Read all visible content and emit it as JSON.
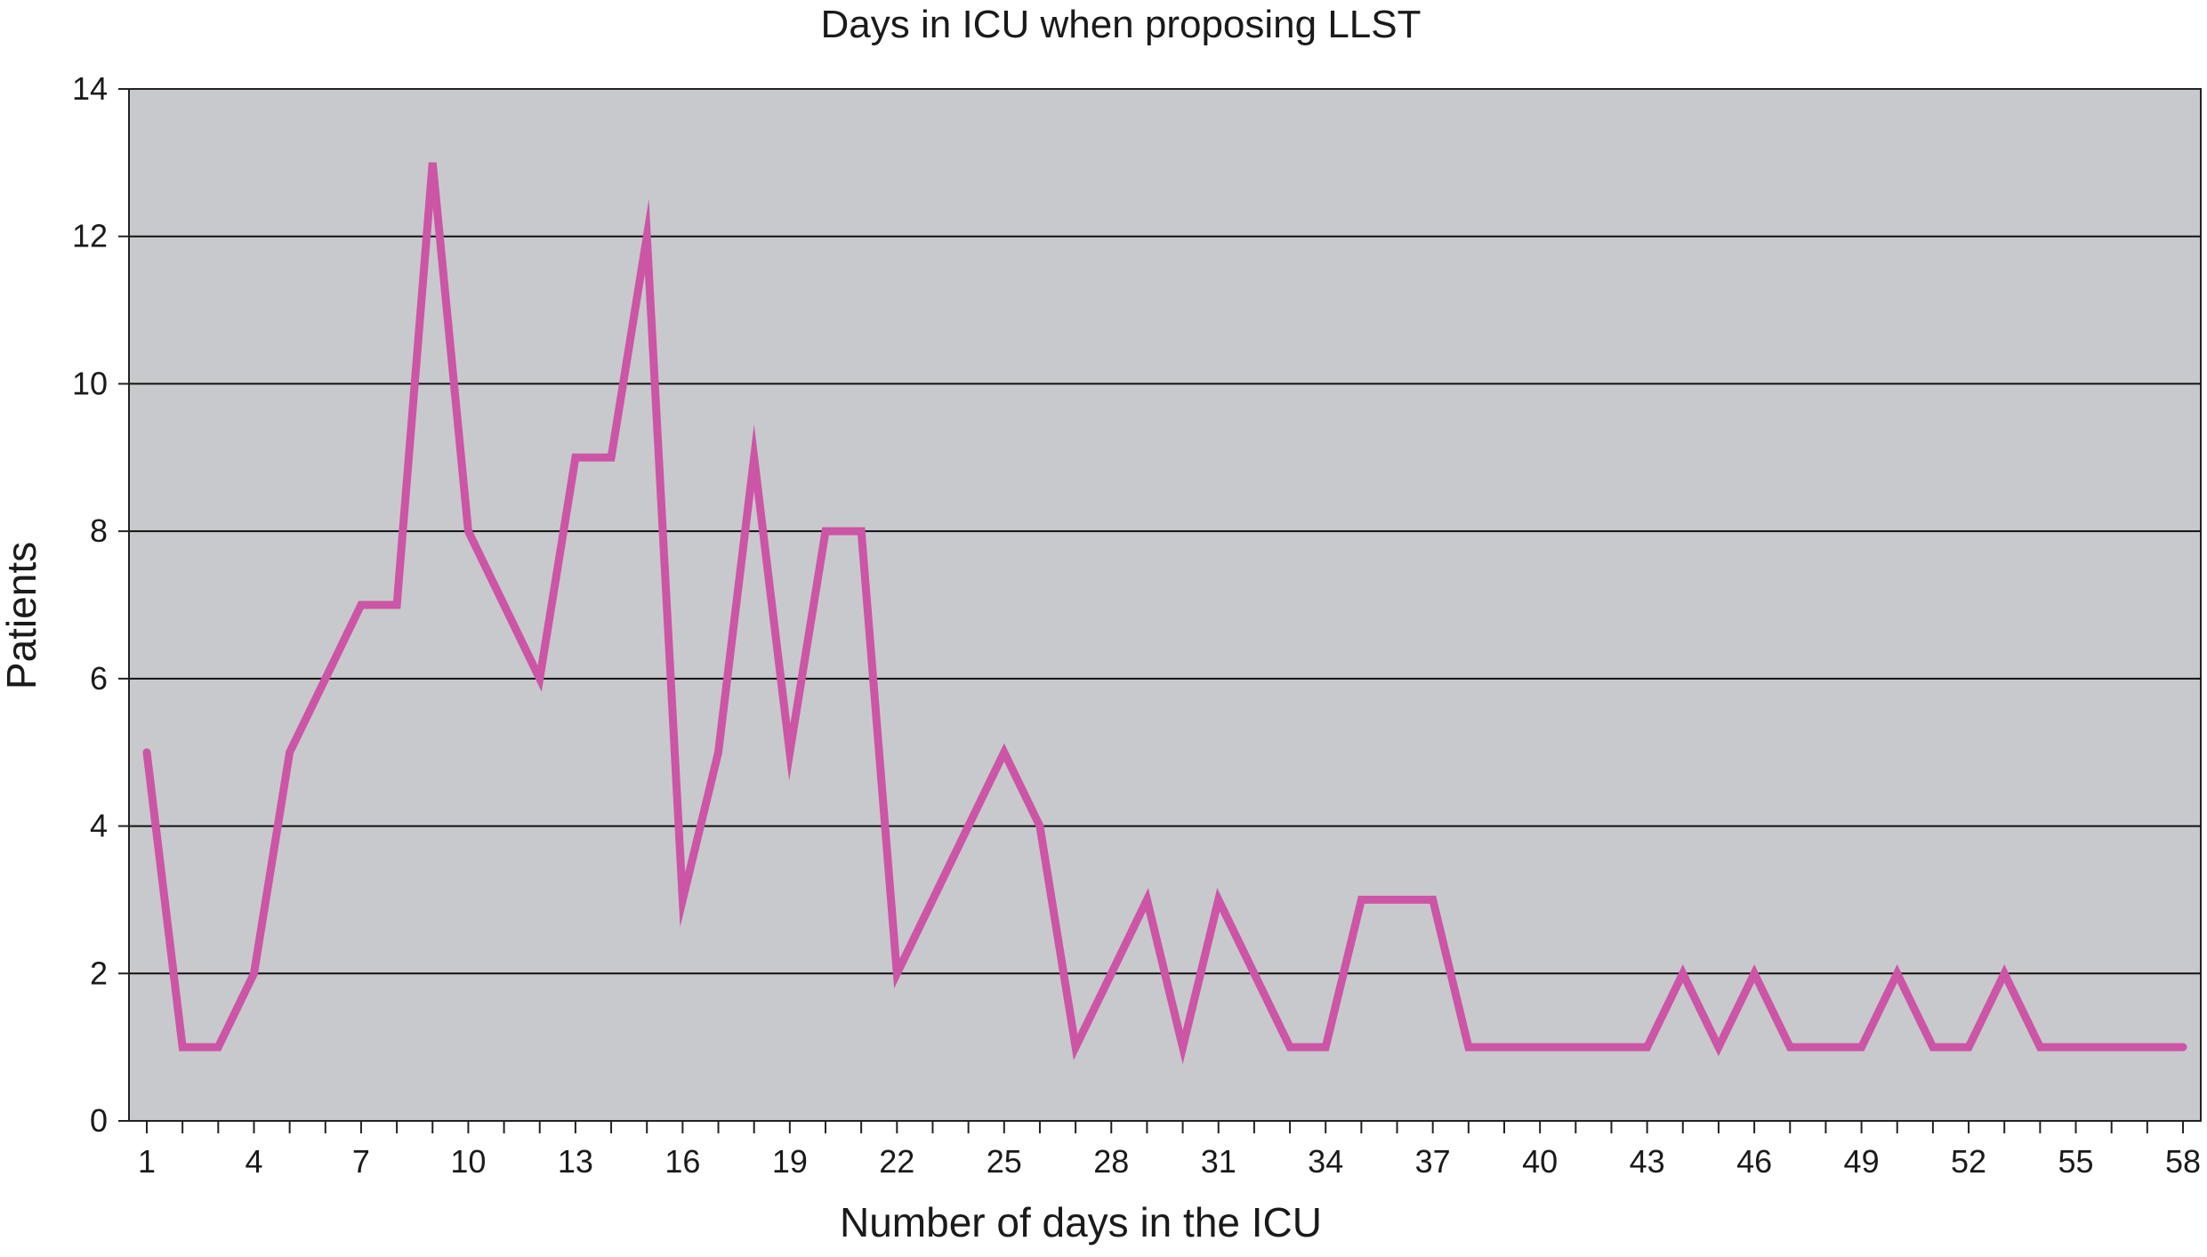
{
  "chart_data": {
    "type": "line",
    "title": "Days in ICU when proposing LLST",
    "xlabel": "Number of days in the ICU",
    "ylabel": "Patients",
    "ylim": [
      0,
      14
    ],
    "y_ticks": [
      0,
      2,
      4,
      6,
      8,
      10,
      12,
      14
    ],
    "x_ticks": [
      1,
      4,
      7,
      10,
      13,
      16,
      19,
      22,
      25,
      28,
      31,
      34,
      37,
      40,
      43,
      46,
      49,
      52,
      55,
      58
    ],
    "grid": true,
    "series_color": "#cc55a6",
    "plot_background": "#c8c9cc",
    "x": [
      1,
      2,
      3,
      4,
      5,
      6,
      7,
      8,
      9,
      10,
      11,
      12,
      13,
      14,
      15,
      16,
      17,
      18,
      19,
      20,
      21,
      22,
      23,
      24,
      25,
      26,
      27,
      28,
      29,
      30,
      31,
      32,
      33,
      34,
      35,
      36,
      37,
      38,
      39,
      40,
      41,
      42,
      43,
      44,
      45,
      46,
      47,
      48,
      49,
      50,
      51,
      52,
      53,
      54,
      55,
      56,
      57,
      58
    ],
    "values": [
      5,
      1,
      1,
      2,
      5,
      6,
      7,
      7,
      13,
      8,
      7,
      6,
      9,
      9,
      12,
      3,
      5,
      9,
      5,
      8,
      8,
      2,
      3,
      4,
      5,
      4,
      1,
      2,
      3,
      1,
      3,
      2,
      1,
      1,
      3,
      3,
      3,
      1,
      1,
      1,
      1,
      1,
      1,
      2,
      1,
      2,
      1,
      1,
      1,
      2,
      1,
      1,
      2,
      1,
      1,
      1,
      1,
      1
    ]
  }
}
